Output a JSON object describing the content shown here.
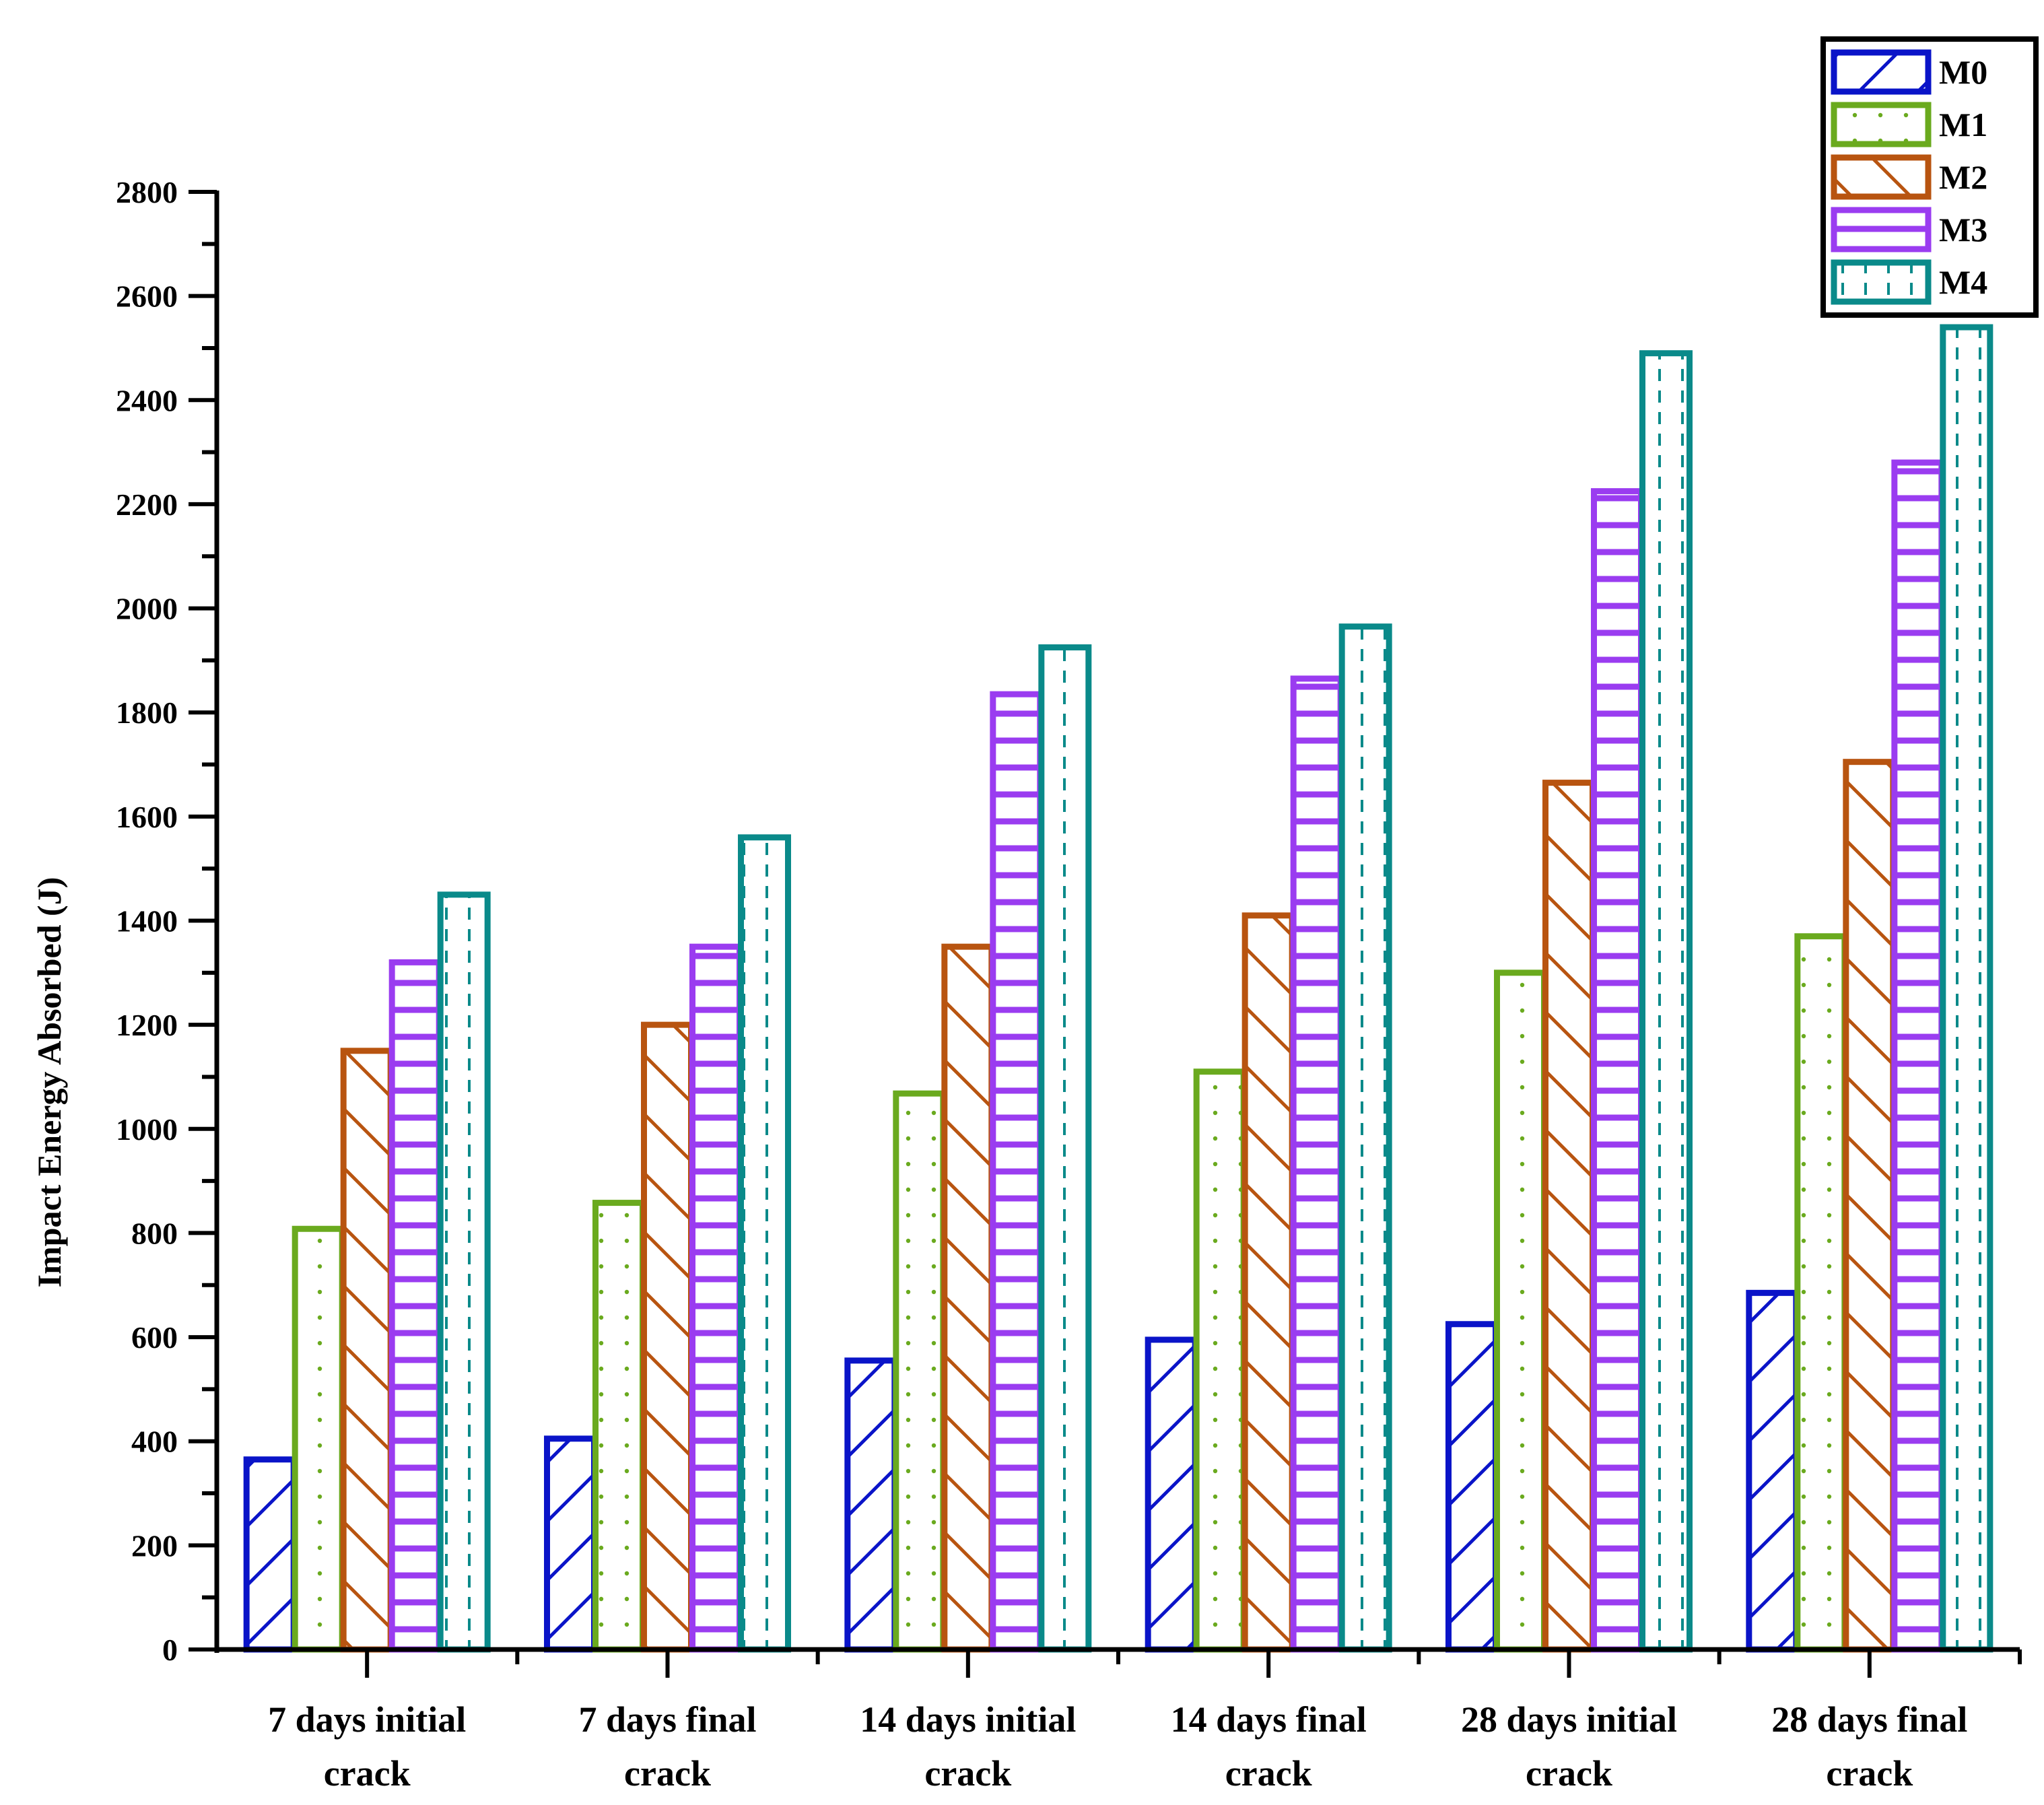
{
  "chart_data": {
    "type": "bar",
    "title": "",
    "xlabel": "",
    "ylabel": "Impact Energy Absorbed (J)",
    "ylim": [
      0,
      2800
    ],
    "yticks": [
      0,
      200,
      400,
      600,
      800,
      1000,
      1200,
      1400,
      1600,
      1800,
      2000,
      2200,
      2400,
      2600,
      2800
    ],
    "ytick_labels": [
      "0",
      "200",
      "400",
      "600",
      "800",
      "1000",
      "1200",
      "1400",
      "1600",
      "1800",
      "2000",
      "2200",
      "2400",
      "2600",
      "2800"
    ],
    "grid": false,
    "legend_position": "top-right",
    "categories": [
      [
        "7 days initial",
        "crack"
      ],
      [
        "7 days final",
        "crack"
      ],
      [
        "14 days initial",
        "crack"
      ],
      [
        "14 days final",
        "crack"
      ],
      [
        "28 days initial",
        "crack"
      ],
      [
        "28 days final",
        "crack"
      ]
    ],
    "series": [
      {
        "name": "M0",
        "color": "#0a14c8",
        "pattern": "diagonal-right",
        "values": [
          365,
          405,
          555,
          595,
          625,
          685
        ]
      },
      {
        "name": "M1",
        "color": "#6aaa1e",
        "pattern": "dots",
        "values": [
          808,
          858,
          1068,
          1110,
          1300,
          1370
        ]
      },
      {
        "name": "M2",
        "color": "#b85410",
        "pattern": "diagonal-left",
        "values": [
          1150,
          1200,
          1350,
          1410,
          1665,
          1705
        ]
      },
      {
        "name": "M3",
        "color": "#9a3cf0",
        "pattern": "horizontal",
        "values": [
          1320,
          1350,
          1835,
          1865,
          2225,
          2280
        ]
      },
      {
        "name": "M4",
        "color": "#0a8a8a",
        "pattern": "vertical-dashed",
        "values": [
          1450,
          1560,
          1925,
          1965,
          2490,
          2540
        ]
      }
    ]
  }
}
